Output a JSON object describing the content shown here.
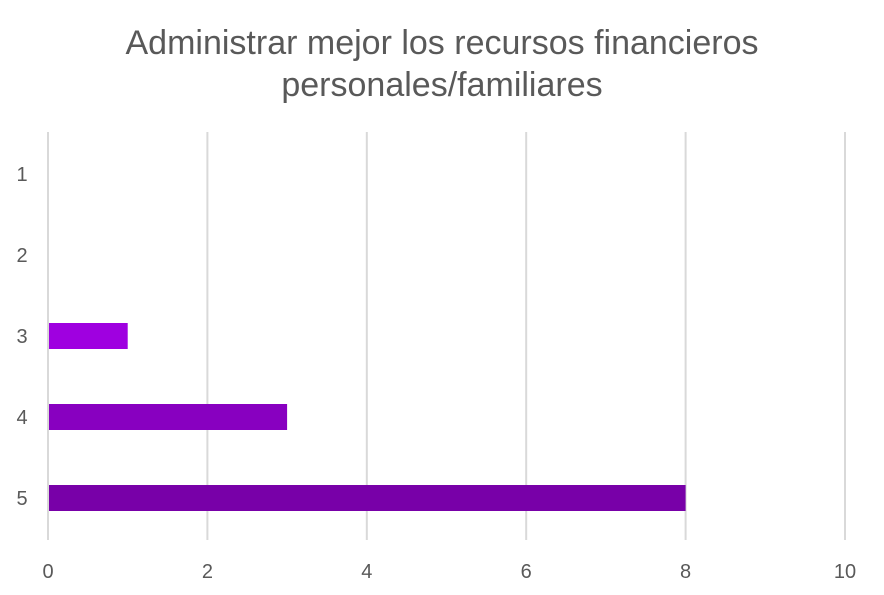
{
  "chart_data": {
    "type": "bar",
    "orientation": "horizontal",
    "title_lines": [
      "Administrar mejor los recursos financieros",
      "personales/familiares"
    ],
    "categories": [
      "1",
      "2",
      "3",
      "4",
      "5"
    ],
    "values": [
      0,
      0,
      1,
      3,
      8
    ],
    "bar_colors": [
      "#8a00c2",
      "#8a00c2",
      "#9f00e0",
      "#8800c0",
      "#7800a8"
    ],
    "xlim": [
      0,
      10
    ],
    "x_ticks": [
      0,
      2,
      4,
      6,
      8,
      10
    ],
    "xlabel": "",
    "ylabel": "",
    "grid": true,
    "legend": "none"
  }
}
